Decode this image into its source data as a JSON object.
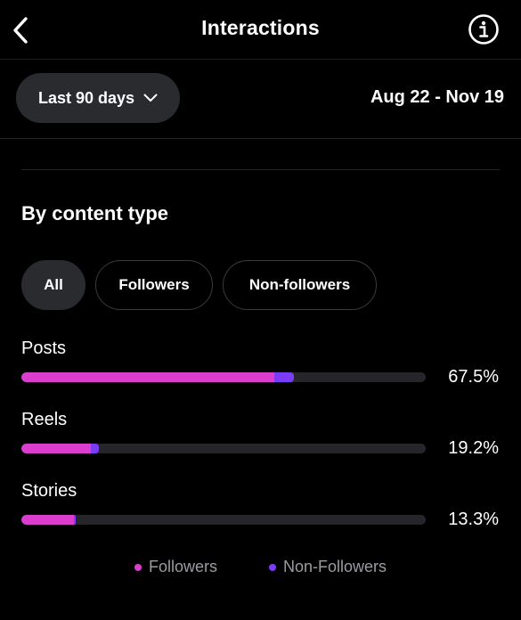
{
  "header": {
    "title": "Interactions",
    "back_icon": "chevron-left-icon",
    "info_icon": "info-circle-icon"
  },
  "range": {
    "selected": "Last 90 days",
    "dates": "Aug 22 - Nov 19"
  },
  "section": {
    "title": "By content type",
    "filters": [
      "All",
      "Followers",
      "Non-followers"
    ],
    "active_filter": "All"
  },
  "colors": {
    "followers": "#db3ecf",
    "non_followers": "#7a3cf5",
    "track": "#26262a"
  },
  "chart_data": {
    "type": "bar",
    "orientation": "horizontal",
    "stacked": true,
    "categories": [
      "Posts",
      "Reels",
      "Stories"
    ],
    "series": [
      {
        "name": "Followers",
        "values": [
          62.5,
          17.2,
          13.0
        ]
      },
      {
        "name": "Non-Followers",
        "values": [
          5.0,
          2.0,
          0.3
        ]
      }
    ],
    "totals": [
      "67.5%",
      "19.2%",
      "13.3%"
    ],
    "xlim": [
      0,
      100
    ]
  },
  "legend": {
    "followers": "Followers",
    "non_followers": "Non-Followers"
  }
}
